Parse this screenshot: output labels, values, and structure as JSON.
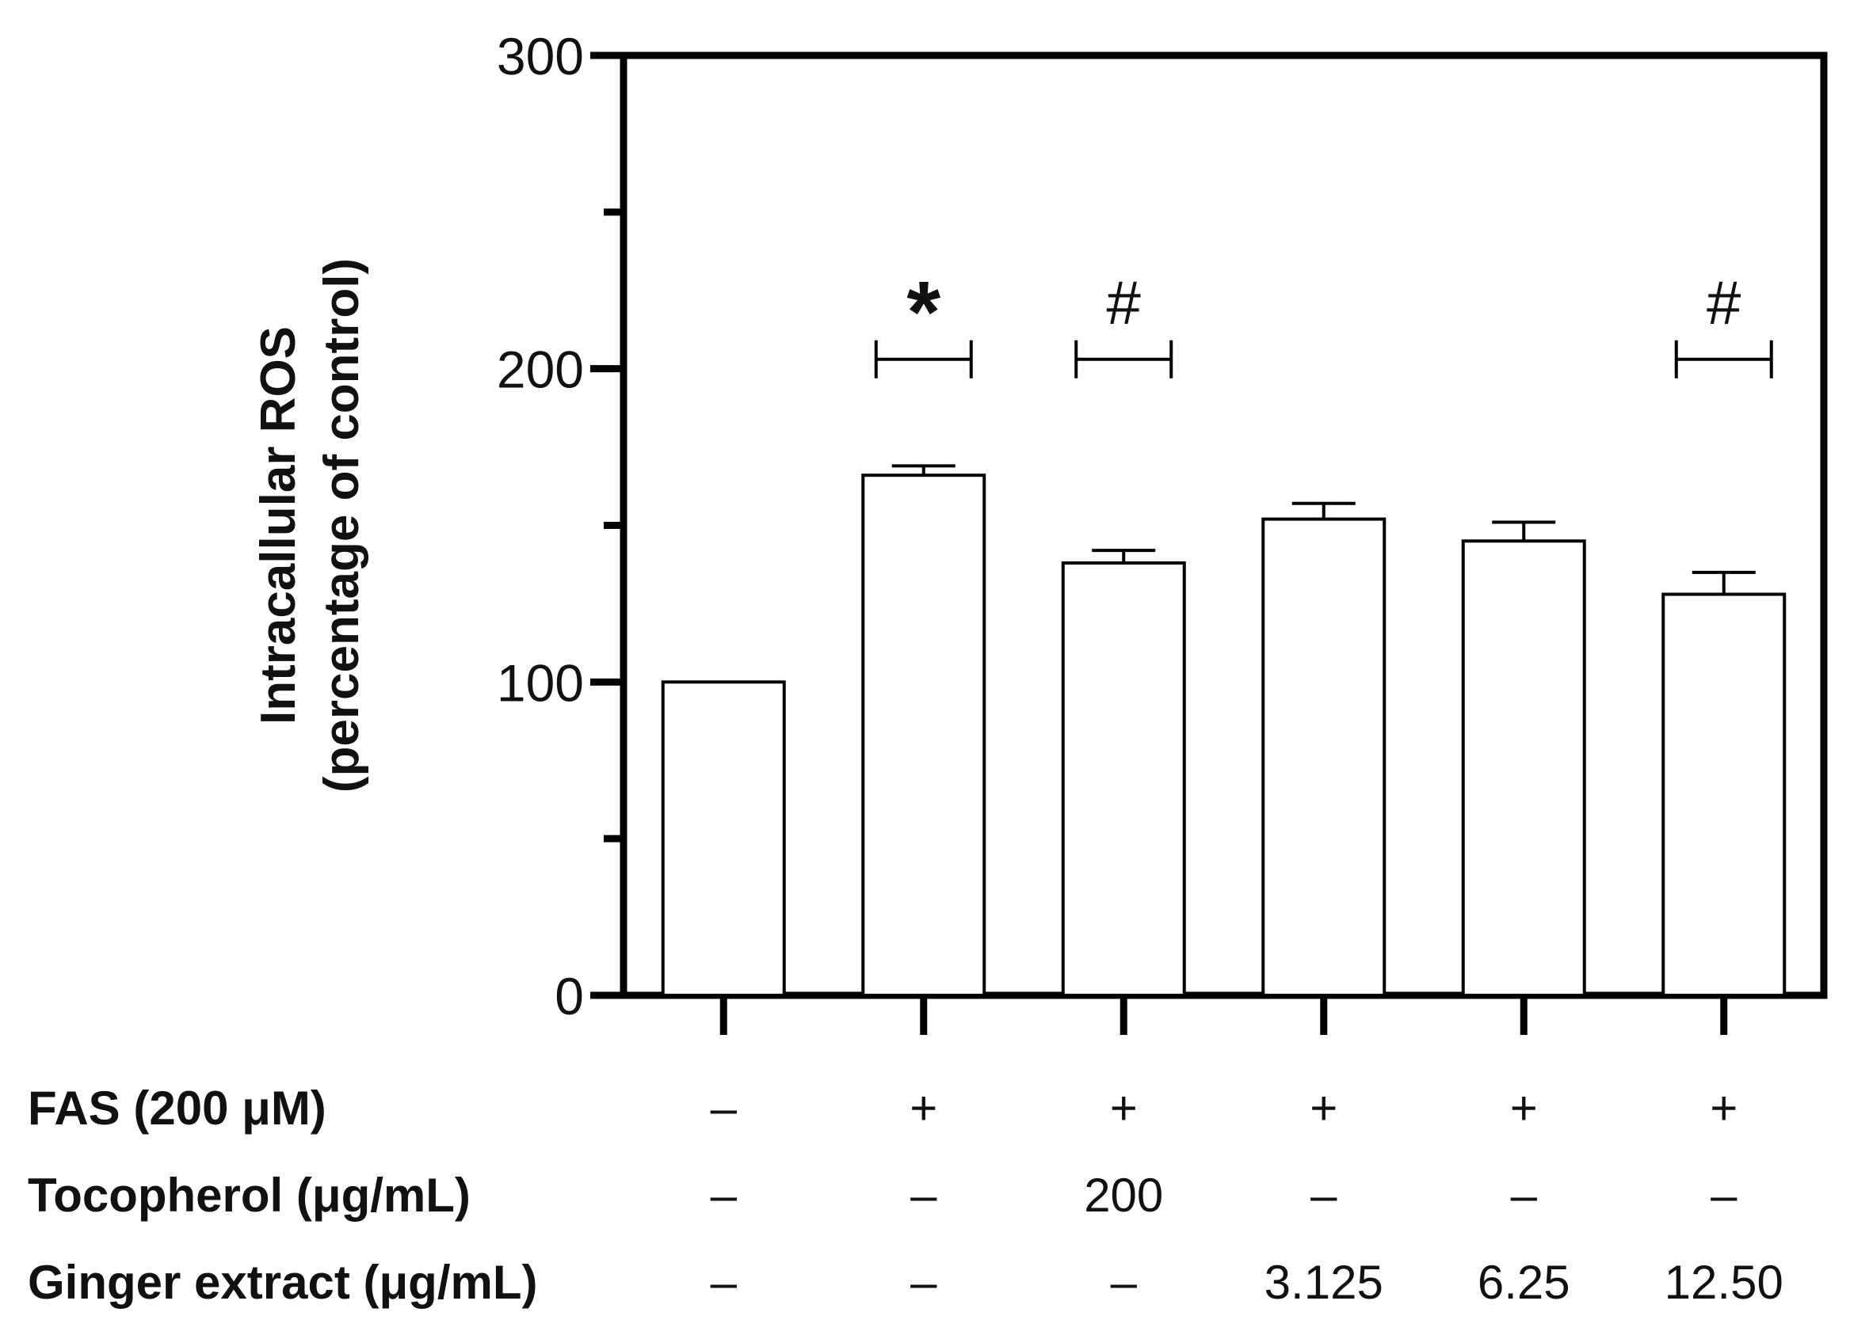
{
  "chart_data": {
    "type": "bar",
    "title": "",
    "ylabel_lines": [
      "Intracallular ROS",
      "(percentage of control)"
    ],
    "ylim": [
      0,
      300
    ],
    "yticks": [
      0,
      100,
      200,
      300
    ],
    "yminor_ticks": [
      50,
      150,
      250
    ],
    "grid": false,
    "bar_count": 6,
    "values": [
      100,
      166,
      138,
      152,
      145,
      128
    ],
    "errors": [
      0,
      3,
      4,
      5,
      6,
      7
    ],
    "significance": [
      {
        "bar": 1,
        "symbol": "*"
      },
      {
        "bar": 2,
        "symbol": "#"
      },
      {
        "bar": 5,
        "symbol": "#"
      }
    ],
    "treatment_rows": [
      {
        "label": "FAS (200 μM)",
        "cells": [
          "–",
          "+",
          "+",
          "+",
          "+",
          "+"
        ]
      },
      {
        "label": "Tocopherol (μg/mL)",
        "cells": [
          "–",
          "–",
          "200",
          "–",
          "–",
          "–"
        ]
      },
      {
        "label": "Ginger extract (μg/mL)",
        "cells": [
          "–",
          "–",
          "–",
          "3.125",
          "6.25",
          "12.50"
        ]
      }
    ],
    "colors": {
      "bar_fill": "#ffffff",
      "stroke": "#000000"
    }
  }
}
